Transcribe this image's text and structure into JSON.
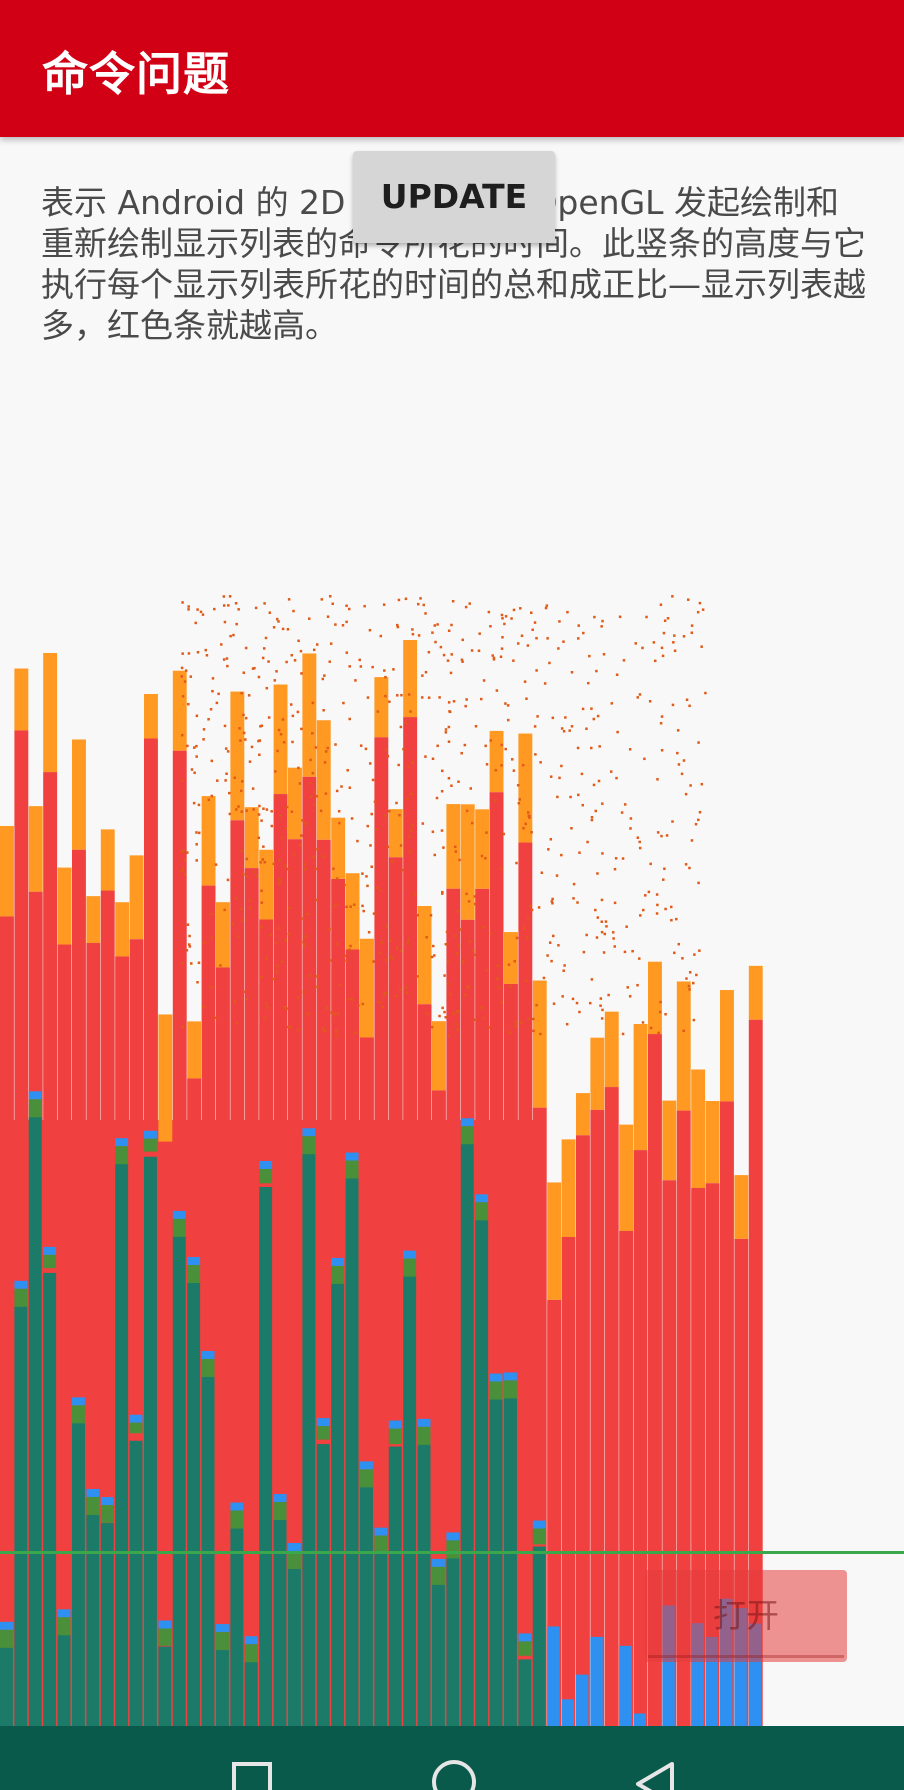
{
  "appbar": {
    "title": "命令问题"
  },
  "description": "表示 Android 的 2D 渲染程序向 OpenGL 发起绘制和重新绘制显示列表的命令所花的时间。此竖条的高度与它执行每个显示列表所花的时间的总和成正比—显示列表越多，红色条就越高。",
  "update_button": {
    "label": "UPDATE"
  },
  "open_button": {
    "label": "打开"
  },
  "navbar": {
    "recents_icon": "square-recents-icon",
    "home_icon": "circle-home-icon",
    "back_icon": "triangle-back-icon"
  },
  "graph": {
    "colors": {
      "process": "#f04040",
      "execute": "#ff9922",
      "input": "#1c7a68",
      "sync": "#2e90f0",
      "measure": "#4a8f3a",
      "threshold": "#3aa84a",
      "noise": "#e05a18"
    }
  }
}
